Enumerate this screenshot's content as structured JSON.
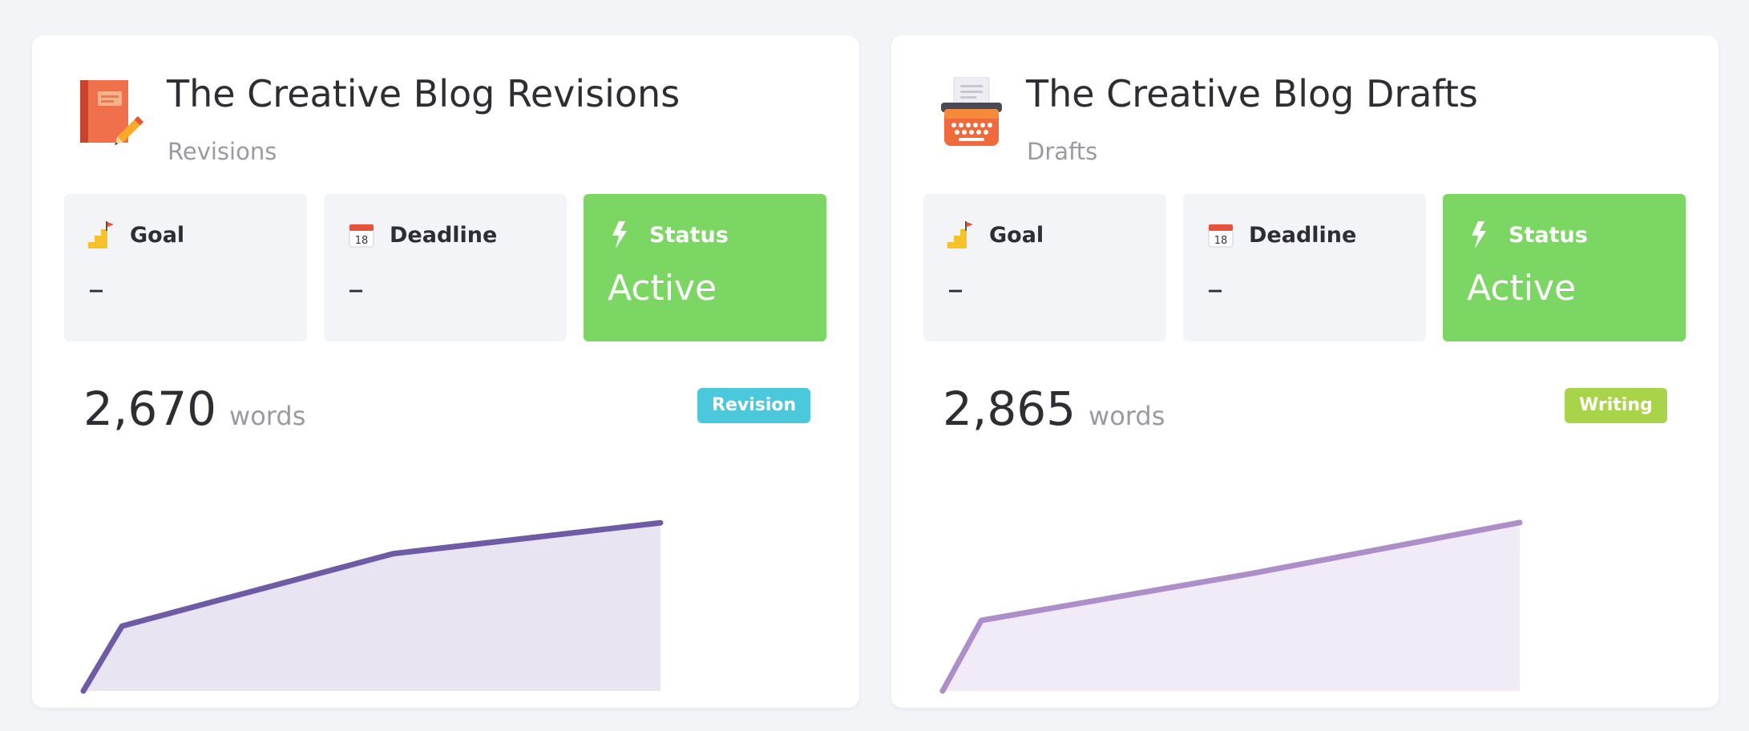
{
  "cards": [
    {
      "icon": "book-pencil-icon",
      "title": "The Creative Blog Revisions",
      "subtitle": "Revisions",
      "stats": {
        "goal": {
          "label": "Goal",
          "value": "–",
          "icon": "stairs-flag-icon"
        },
        "deadline": {
          "label": "Deadline",
          "value": "–",
          "icon": "calendar-icon",
          "icon_text": "18"
        },
        "status": {
          "label": "Status",
          "value": "Active",
          "icon": "lightning-icon",
          "color": "#7cd664"
        }
      },
      "word_count": "2,670",
      "word_unit": "words",
      "badge": {
        "label": "Revision",
        "color": "#4cc8dc"
      },
      "chart_data": {
        "type": "area",
        "color": "#6f5aa6",
        "fill": "#e8e4f1",
        "values": [
          0,
          1030,
          2180,
          2670
        ],
        "ylim": [
          0,
          2800
        ]
      }
    },
    {
      "icon": "typewriter-icon",
      "title": "The Creative Blog Drafts",
      "subtitle": "Drafts",
      "stats": {
        "goal": {
          "label": "Goal",
          "value": "–",
          "icon": "stairs-flag-icon"
        },
        "deadline": {
          "label": "Deadline",
          "value": "–",
          "icon": "calendar-icon",
          "icon_text": "18"
        },
        "status": {
          "label": "Status",
          "value": "Active",
          "icon": "lightning-icon",
          "color": "#7cd664"
        }
      },
      "word_count": "2,865",
      "word_unit": "words",
      "badge": {
        "label": "Writing",
        "color": "#a9d449"
      },
      "chart_data": {
        "type": "area",
        "color": "#ae8ec9",
        "fill": "#f1ebf7",
        "values": [
          0,
          1200,
          2000,
          2865
        ],
        "ylim": [
          0,
          3000
        ]
      }
    }
  ]
}
